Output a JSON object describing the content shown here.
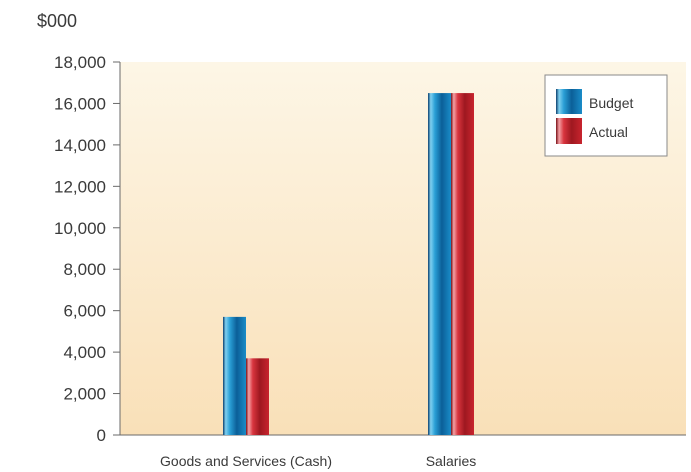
{
  "chart_data": {
    "type": "bar",
    "unit_label": "$000",
    "categories": [
      "Goods and Services (Cash)",
      "Salaries"
    ],
    "series": [
      {
        "name": "Budget",
        "values": [
          5700,
          16500
        ],
        "color": "#1a7fb8"
      },
      {
        "name": "Actual",
        "values": [
          3700,
          16500
        ],
        "color": "#c41f2a"
      }
    ],
    "ylim": [
      0,
      18000
    ],
    "yticks": [
      "0",
      "2,000",
      "4,000",
      "6,000",
      "8,000",
      "10,000",
      "12,000",
      "14,000",
      "16,000",
      "18,000"
    ],
    "ytick_values": [
      0,
      2000,
      4000,
      6000,
      8000,
      10000,
      12000,
      14000,
      16000,
      18000
    ],
    "legend_position": "top-right",
    "background_gradient": [
      "#fdf6e6",
      "#f9e0b8"
    ]
  }
}
